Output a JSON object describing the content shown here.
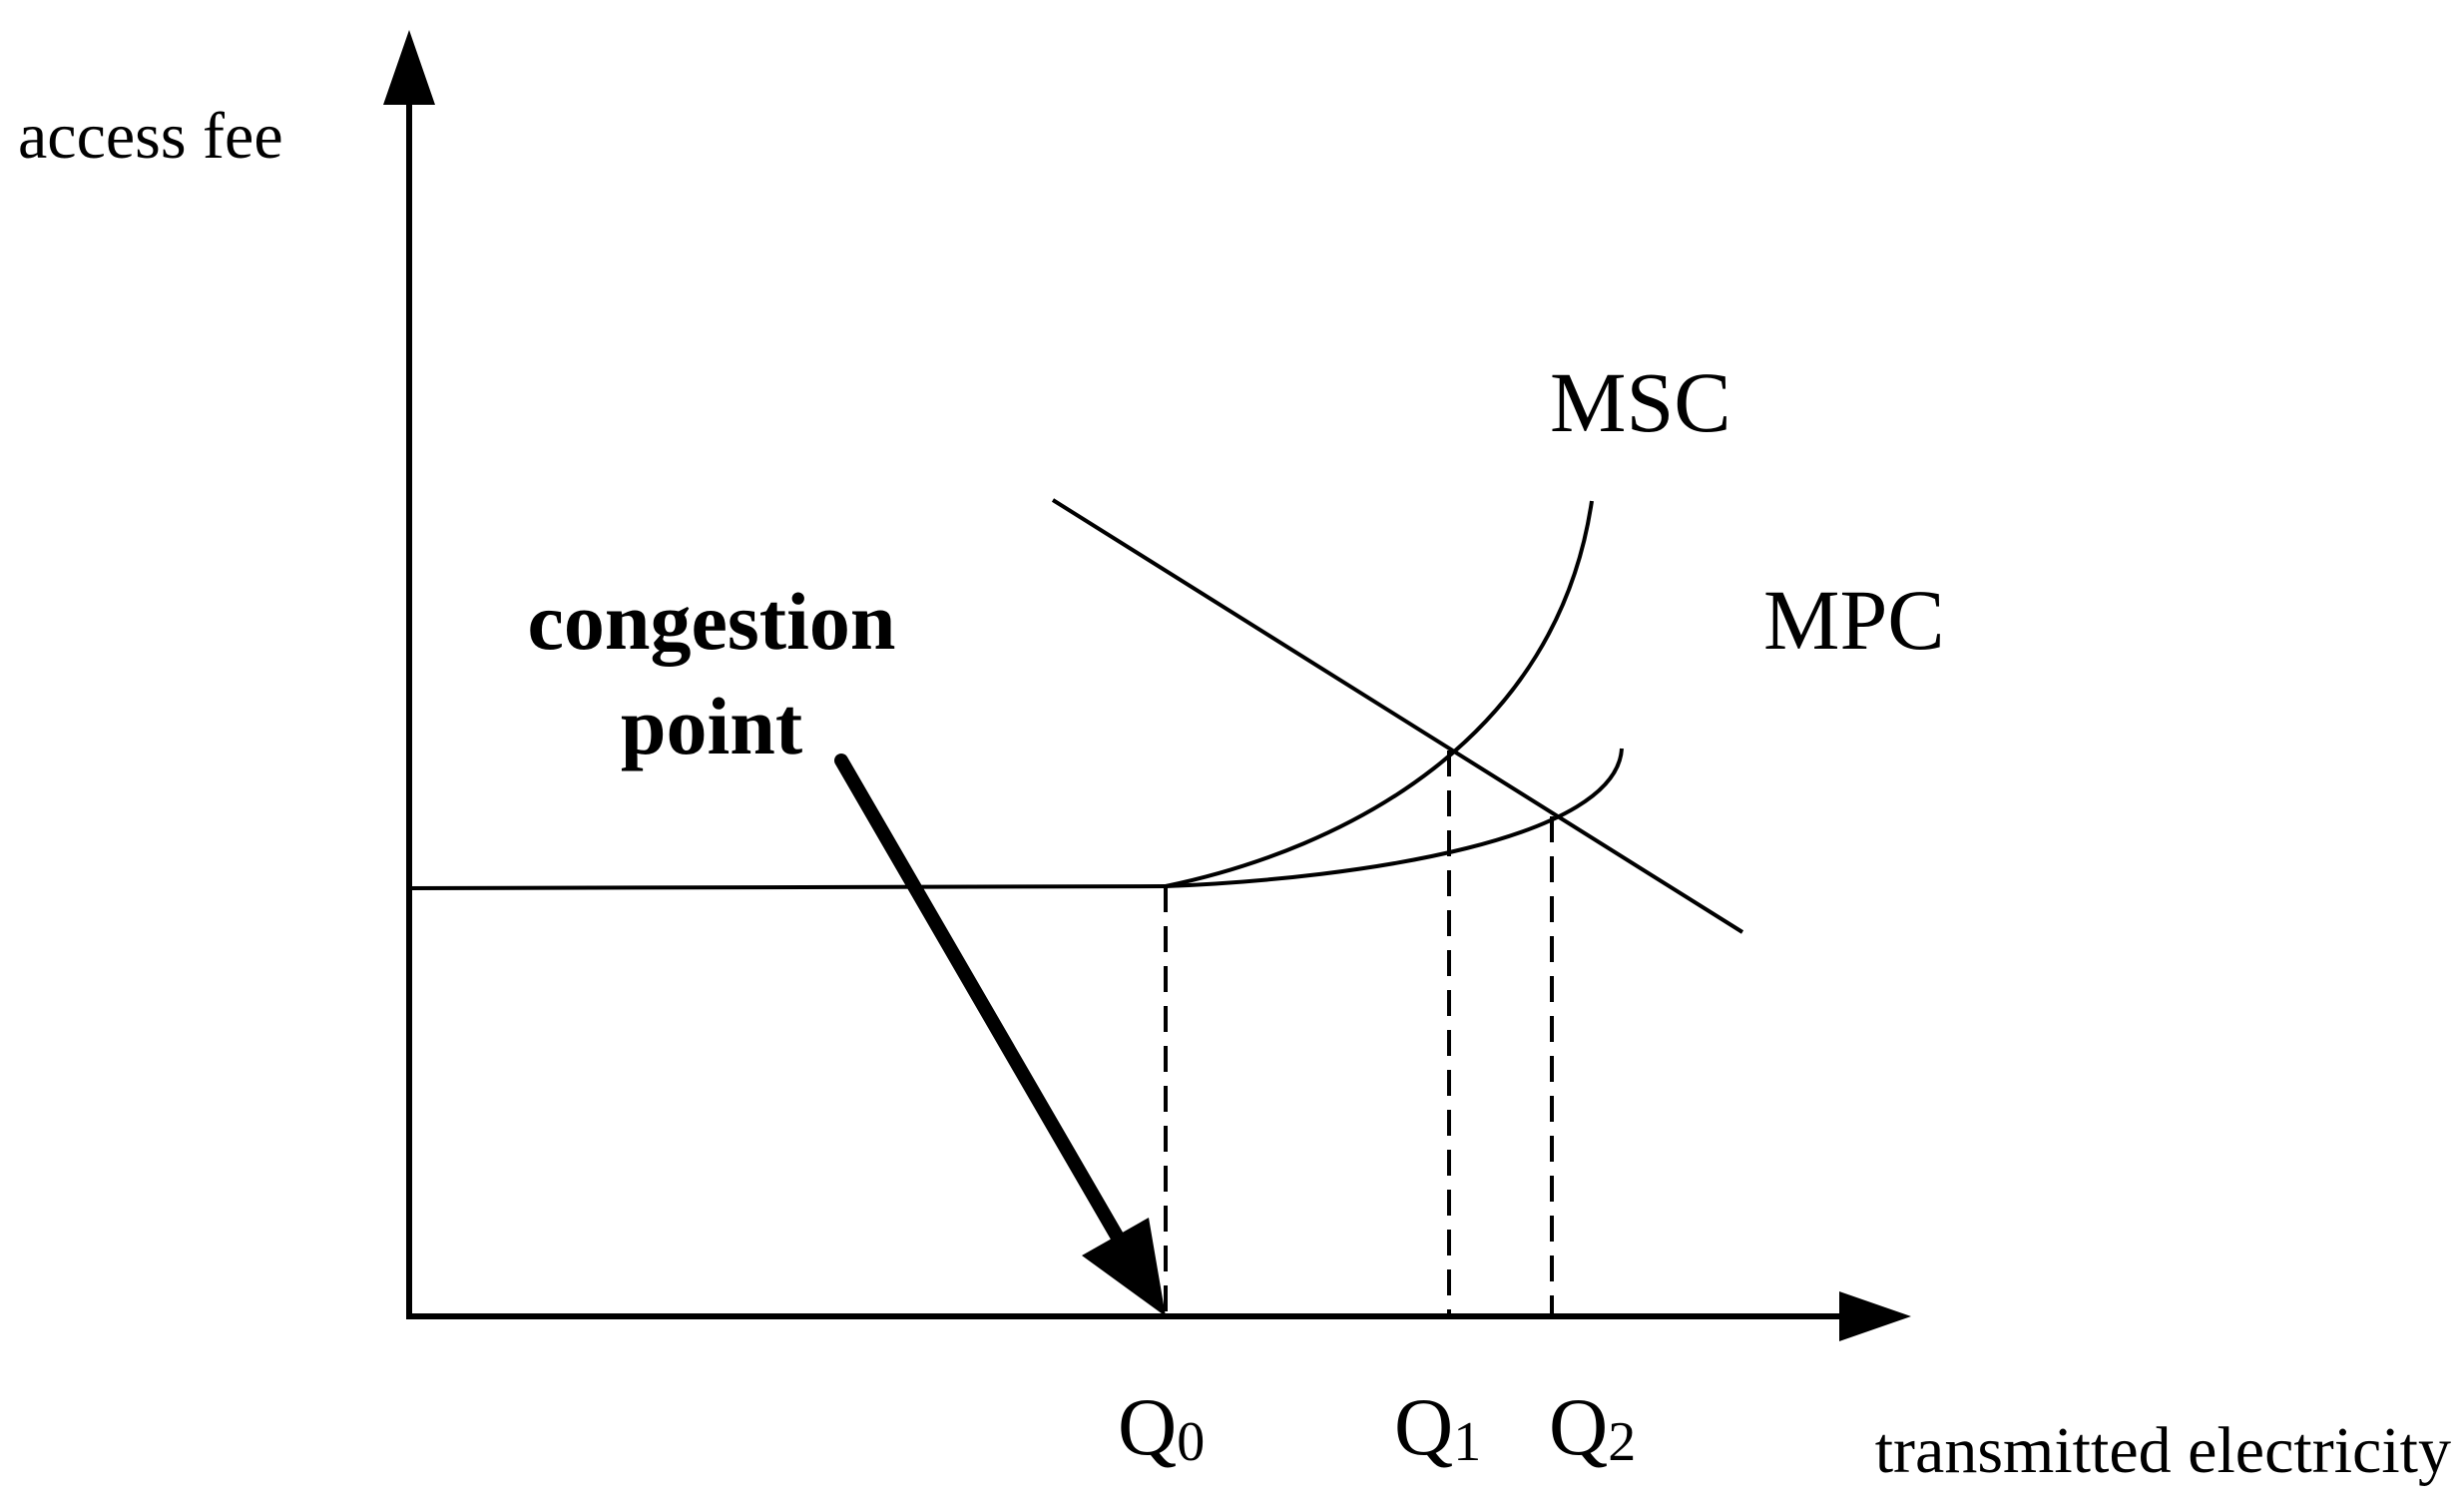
{
  "axes": {
    "y_label": "access fee",
    "x_label": "transmitted electricity"
  },
  "curves": {
    "msc_label": "MSC",
    "mpc_label": "MPC"
  },
  "quantities": [
    {
      "symbol": "Q",
      "subscript": "0"
    },
    {
      "symbol": "Q",
      "subscript": "1"
    },
    {
      "symbol": "Q",
      "subscript": "2"
    }
  ],
  "annotation": {
    "line1": "congestion",
    "line2": "point"
  }
}
